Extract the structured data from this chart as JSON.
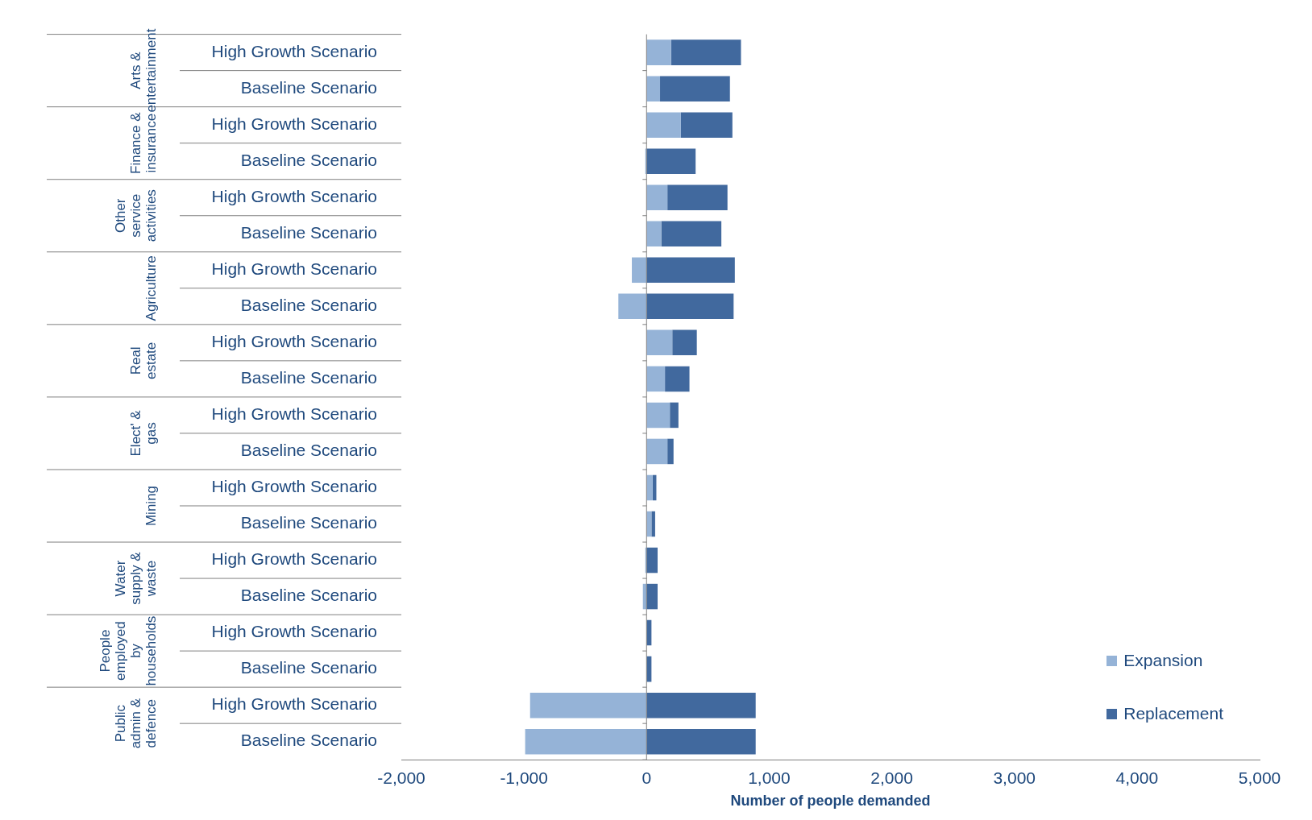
{
  "chart_data": {
    "type": "bar",
    "orientation": "horizontal",
    "stacked": true,
    "xlabel": "Number of people demanded",
    "categories": [
      "High Growth Scenario",
      "Baseline Scenario",
      "High Growth Scenario",
      "Baseline Scenario",
      "High Growth Scenario",
      "Baseline Scenario",
      "High Growth Scenario",
      "Baseline Scenario",
      "High Growth Scenario",
      "Baseline Scenario",
      "High Growth Scenario",
      "Baseline Scenario",
      "High Growth Scenario",
      "Baseline Scenario",
      "High Growth Scenario",
      "Baseline Scenario",
      "High Growth Scenario",
      "Baseline Scenario",
      "High Growth Scenario",
      "Baseline Scenario"
    ],
    "series": [
      {
        "name": "Expansion",
        "color": "#95b3d7",
        "values": [
          200,
          110,
          280,
          -10,
          170,
          120,
          -120,
          -230,
          210,
          150,
          190,
          170,
          50,
          40,
          -10,
          -30,
          null,
          null,
          -950,
          -990
        ]
      },
      {
        "name": "Replacement",
        "color": "#41699e",
        "values": [
          570,
          570,
          420,
          400,
          490,
          490,
          720,
          710,
          200,
          200,
          70,
          50,
          30,
          30,
          90,
          90,
          40,
          40,
          890,
          890
        ]
      }
    ],
    "annotations": [
      "Arts & entertainment",
      "Finance & insurance",
      "Other service activities",
      "Agriculture",
      "Real estate",
      "Elect' & gas",
      "Mining",
      "Water supply & waste",
      "People employed by households",
      "Public admin & defence"
    ],
    "xlim": [
      -2000,
      5000
    ],
    "xticks": [
      {
        "value": -2000,
        "label": "-2,000"
      },
      {
        "value": -1000,
        "label": "-1,000"
      },
      0,
      {
        "value": 1000,
        "label": "1,000"
      },
      {
        "value": 2000,
        "label": "2,000"
      },
      {
        "value": 3000,
        "label": "3,000"
      },
      {
        "value": 4000,
        "label": "4,000"
      },
      {
        "value": 5000,
        "label": "5,000"
      }
    ],
    "legend": "bottom right"
  }
}
